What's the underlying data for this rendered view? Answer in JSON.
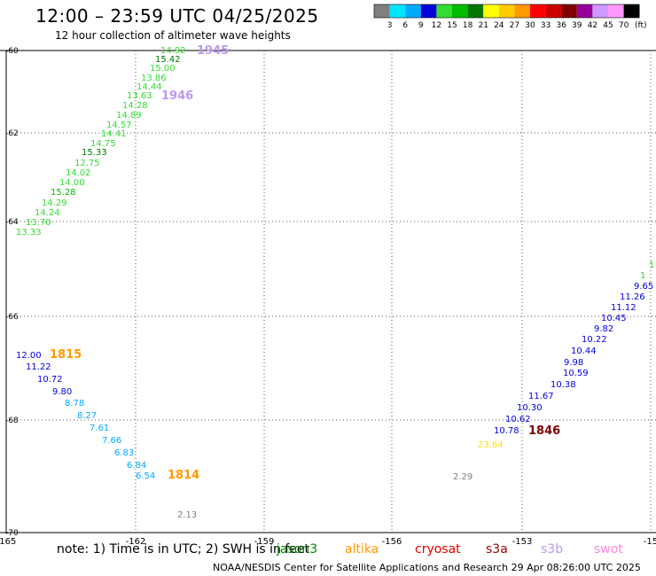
{
  "title": "12:00 – 23:59 UTC 04/25/2025",
  "subtitle": "12 hour collection of altimeter wave heights",
  "colorbar": {
    "colors": [
      "#7f7f7f",
      "#00e5ff",
      "#00aaff",
      "#0000dd",
      "#33dd33",
      "#00bb00",
      "#007700",
      "#ffff00",
      "#ffcc00",
      "#ff9900",
      "#ff0000",
      "#cc0000",
      "#800000",
      "#990099",
      "#cc99ff",
      "#ff99ff",
      "#000000"
    ],
    "ticks": [
      "3",
      "6",
      "9",
      "12",
      "15",
      "18",
      "21",
      "24",
      "27",
      "30",
      "33",
      "36",
      "39",
      "42",
      "45",
      "70"
    ],
    "unit": "(ft)"
  },
  "axes": {
    "x_labels": [
      "-165",
      "-162",
      "-159",
      "-156",
      "-153",
      "-15"
    ],
    "y_labels": [
      "-60",
      "-62",
      "-64",
      "-66",
      "-68",
      "-70"
    ]
  },
  "note": "note: 1) Time is in UTC; 2) SWH is in feet",
  "satellites": [
    {
      "name": "jason3",
      "color": "#008800"
    },
    {
      "name": "altika",
      "color": "#ff9900"
    },
    {
      "name": "cryosat",
      "color": "#dd0000"
    },
    {
      "name": "s3a",
      "color": "#990000"
    },
    {
      "name": "s3b",
      "color": "#bb99ee"
    },
    {
      "name": "swot",
      "color": "#ff88dd"
    }
  ],
  "credit": "NOAA/NESDIS Center for Satellite Applications and Research     29 Apr 08:26:00 UTC 2025",
  "time_labels": [
    "1945",
    "1946",
    "1815",
    "1814",
    "1846"
  ],
  "wave_heights": [
    "14.92",
    "15.42",
    "15.00",
    "13.86",
    "14.44",
    "13.63",
    "14.28",
    "14.89",
    "14.57",
    "14.41",
    "14.75",
    "15.33",
    "12.75",
    "14.02",
    "14.00",
    "15.28",
    "14.29",
    "14.24",
    "13.70",
    "13.33",
    "12.00",
    "11.22",
    "10.72",
    "9.80",
    "8.78",
    "8.27",
    "7.61",
    "7.66",
    "6.83",
    "6.84",
    "6.54",
    "2.13",
    "2.29",
    "23.64",
    "1",
    "1",
    "9.65",
    "11.26",
    "11.12",
    "10.45",
    "9.82",
    "10.22",
    "10.44",
    "9.98",
    "10.59",
    "10.38",
    "11.67",
    "10.30",
    "10.62",
    "10.78"
  ]
}
